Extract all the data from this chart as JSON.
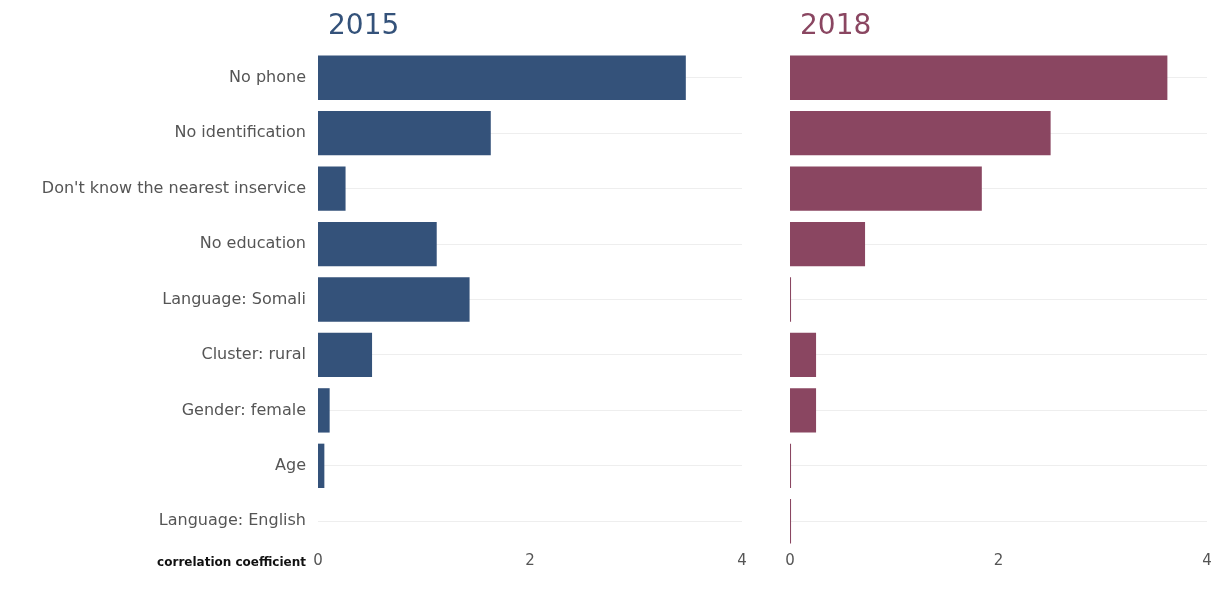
{
  "chart_data": [
    {
      "type": "bar",
      "title": "2015",
      "orientation": "horizontal",
      "xlabel": "correlation coefficient",
      "categories": [
        "No phone",
        "No identification",
        "Don't know the nearest inservice",
        "No education",
        "Language: Somali",
        "Cluster: rural",
        "Gender: female",
        "Age",
        "Language: English"
      ],
      "series": [
        {
          "color": "#34527a",
          "values": [
            3.47,
            1.63,
            0.26,
            1.12,
            1.43,
            0.51,
            0.11,
            0.06,
            0
          ]
        }
      ],
      "xlim": [
        0,
        4
      ],
      "xticks": [
        0,
        2,
        4
      ],
      "grid": "y",
      "legend": false
    },
    {
      "type": "bar",
      "title": "2018",
      "orientation": "horizontal",
      "categories": [
        null,
        null,
        null,
        null,
        null,
        null,
        null,
        null,
        null
      ],
      "series": [
        {
          "color": "#8a4661",
          "values": [
            3.62,
            2.5,
            1.84,
            0.72,
            0.01,
            0.25,
            0.25,
            0.01,
            0.01
          ]
        }
      ],
      "xlim": [
        0,
        4
      ],
      "xticks": [
        0,
        2,
        4
      ],
      "grid": "y",
      "legend": false,
      "tick_labels": "x"
    }
  ]
}
